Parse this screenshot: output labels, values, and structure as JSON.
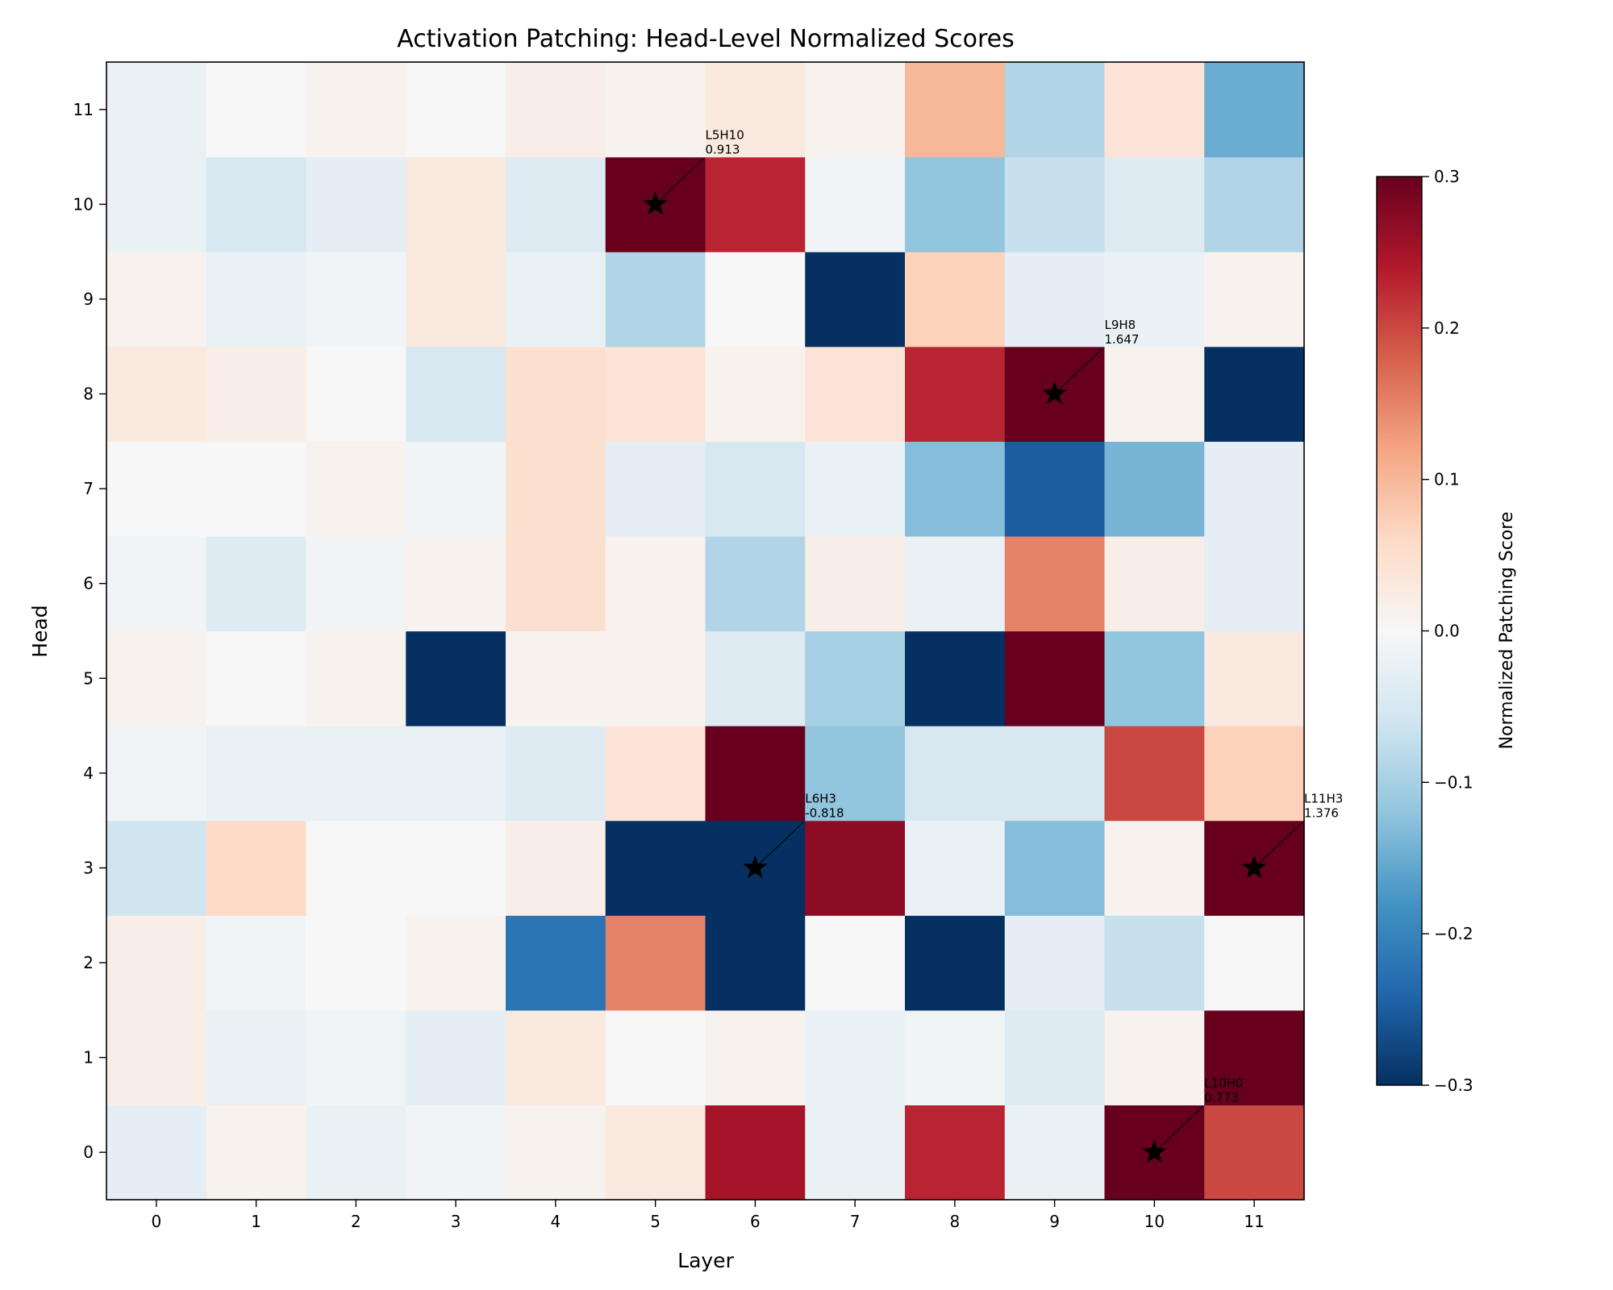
{
  "chart_data": {
    "type": "heatmap",
    "title": "Activation Patching: Head-Level Normalized Scores",
    "xlabel": "Layer",
    "ylabel": "Head",
    "x_ticks": [
      "0",
      "1",
      "2",
      "3",
      "4",
      "5",
      "6",
      "7",
      "8",
      "9",
      "10",
      "11"
    ],
    "y_ticks": [
      "0",
      "1",
      "2",
      "3",
      "4",
      "5",
      "6",
      "7",
      "8",
      "9",
      "10",
      "11"
    ],
    "colormap": "RdBu_r",
    "vmin": -0.3,
    "vmax": 0.3,
    "colorbar_label": "Normalized Patching Score",
    "colorbar_ticks": [
      "0.3",
      "0.2",
      "0.1",
      "0.0",
      "−0.1",
      "−0.2",
      "−0.3"
    ],
    "colorbar_tick_values": [
      0.3,
      0.2,
      0.1,
      0.0,
      -0.1,
      -0.2,
      -0.3
    ],
    "values_by_head": [
      [
        -0.03,
        0.01,
        -0.02,
        -0.01,
        0.01,
        0.03,
        0.25,
        -0.02,
        0.23,
        -0.02,
        0.773,
        0.2
      ],
      [
        0.02,
        -0.02,
        -0.01,
        -0.03,
        0.03,
        0.0,
        0.01,
        -0.02,
        -0.01,
        -0.04,
        0.01,
        0.6
      ],
      [
        0.02,
        -0.01,
        0.0,
        0.01,
        -0.22,
        0.15,
        -0.35,
        0.0,
        -0.4,
        -0.03,
        -0.07,
        0.0
      ],
      [
        -0.06,
        0.06,
        0.0,
        0.0,
        0.02,
        -0.4,
        -0.818,
        0.27,
        -0.02,
        -0.13,
        0.01,
        1.376
      ],
      [
        -0.01,
        -0.02,
        -0.02,
        -0.02,
        -0.04,
        0.04,
        0.4,
        -0.12,
        -0.05,
        -0.05,
        0.2,
        0.07
      ],
      [
        0.01,
        0.0,
        0.01,
        -0.5,
        0.01,
        0.01,
        -0.04,
        -0.1,
        -0.5,
        0.45,
        -0.12,
        0.03
      ],
      [
        -0.01,
        -0.04,
        -0.01,
        0.01,
        0.05,
        0.01,
        -0.09,
        0.02,
        -0.02,
        0.15,
        0.02,
        -0.03
      ],
      [
        0.0,
        0.0,
        0.01,
        -0.01,
        0.05,
        -0.03,
        -0.05,
        -0.02,
        -0.13,
        -0.25,
        -0.14,
        -0.03
      ],
      [
        0.03,
        0.02,
        0.0,
        -0.05,
        0.05,
        0.04,
        0.01,
        0.04,
        0.23,
        1.647,
        0.01,
        -0.6
      ],
      [
        0.01,
        -0.02,
        -0.01,
        0.03,
        -0.02,
        -0.09,
        0.0,
        -0.5,
        0.07,
        -0.03,
        -0.02,
        0.01
      ],
      [
        -0.02,
        -0.05,
        -0.03,
        0.03,
        -0.04,
        0.913,
        0.23,
        -0.01,
        -0.12,
        -0.07,
        -0.04,
        -0.09
      ],
      [
        -0.02,
        0.0,
        0.01,
        0.0,
        0.02,
        0.01,
        0.03,
        0.01,
        0.1,
        -0.09,
        0.04,
        -0.15
      ]
    ],
    "annotations": [
      {
        "layer": 5,
        "head": 10,
        "text": "L5H10\n0.913"
      },
      {
        "layer": 6,
        "head": 3,
        "text": "L6H3\n-0.818"
      },
      {
        "layer": 9,
        "head": 8,
        "text": "L9H8\n1.647"
      },
      {
        "layer": 10,
        "head": 0,
        "text": "L10H0\n0.773"
      },
      {
        "layer": 11,
        "head": 3,
        "text": "L11H3\n1.376"
      }
    ]
  }
}
